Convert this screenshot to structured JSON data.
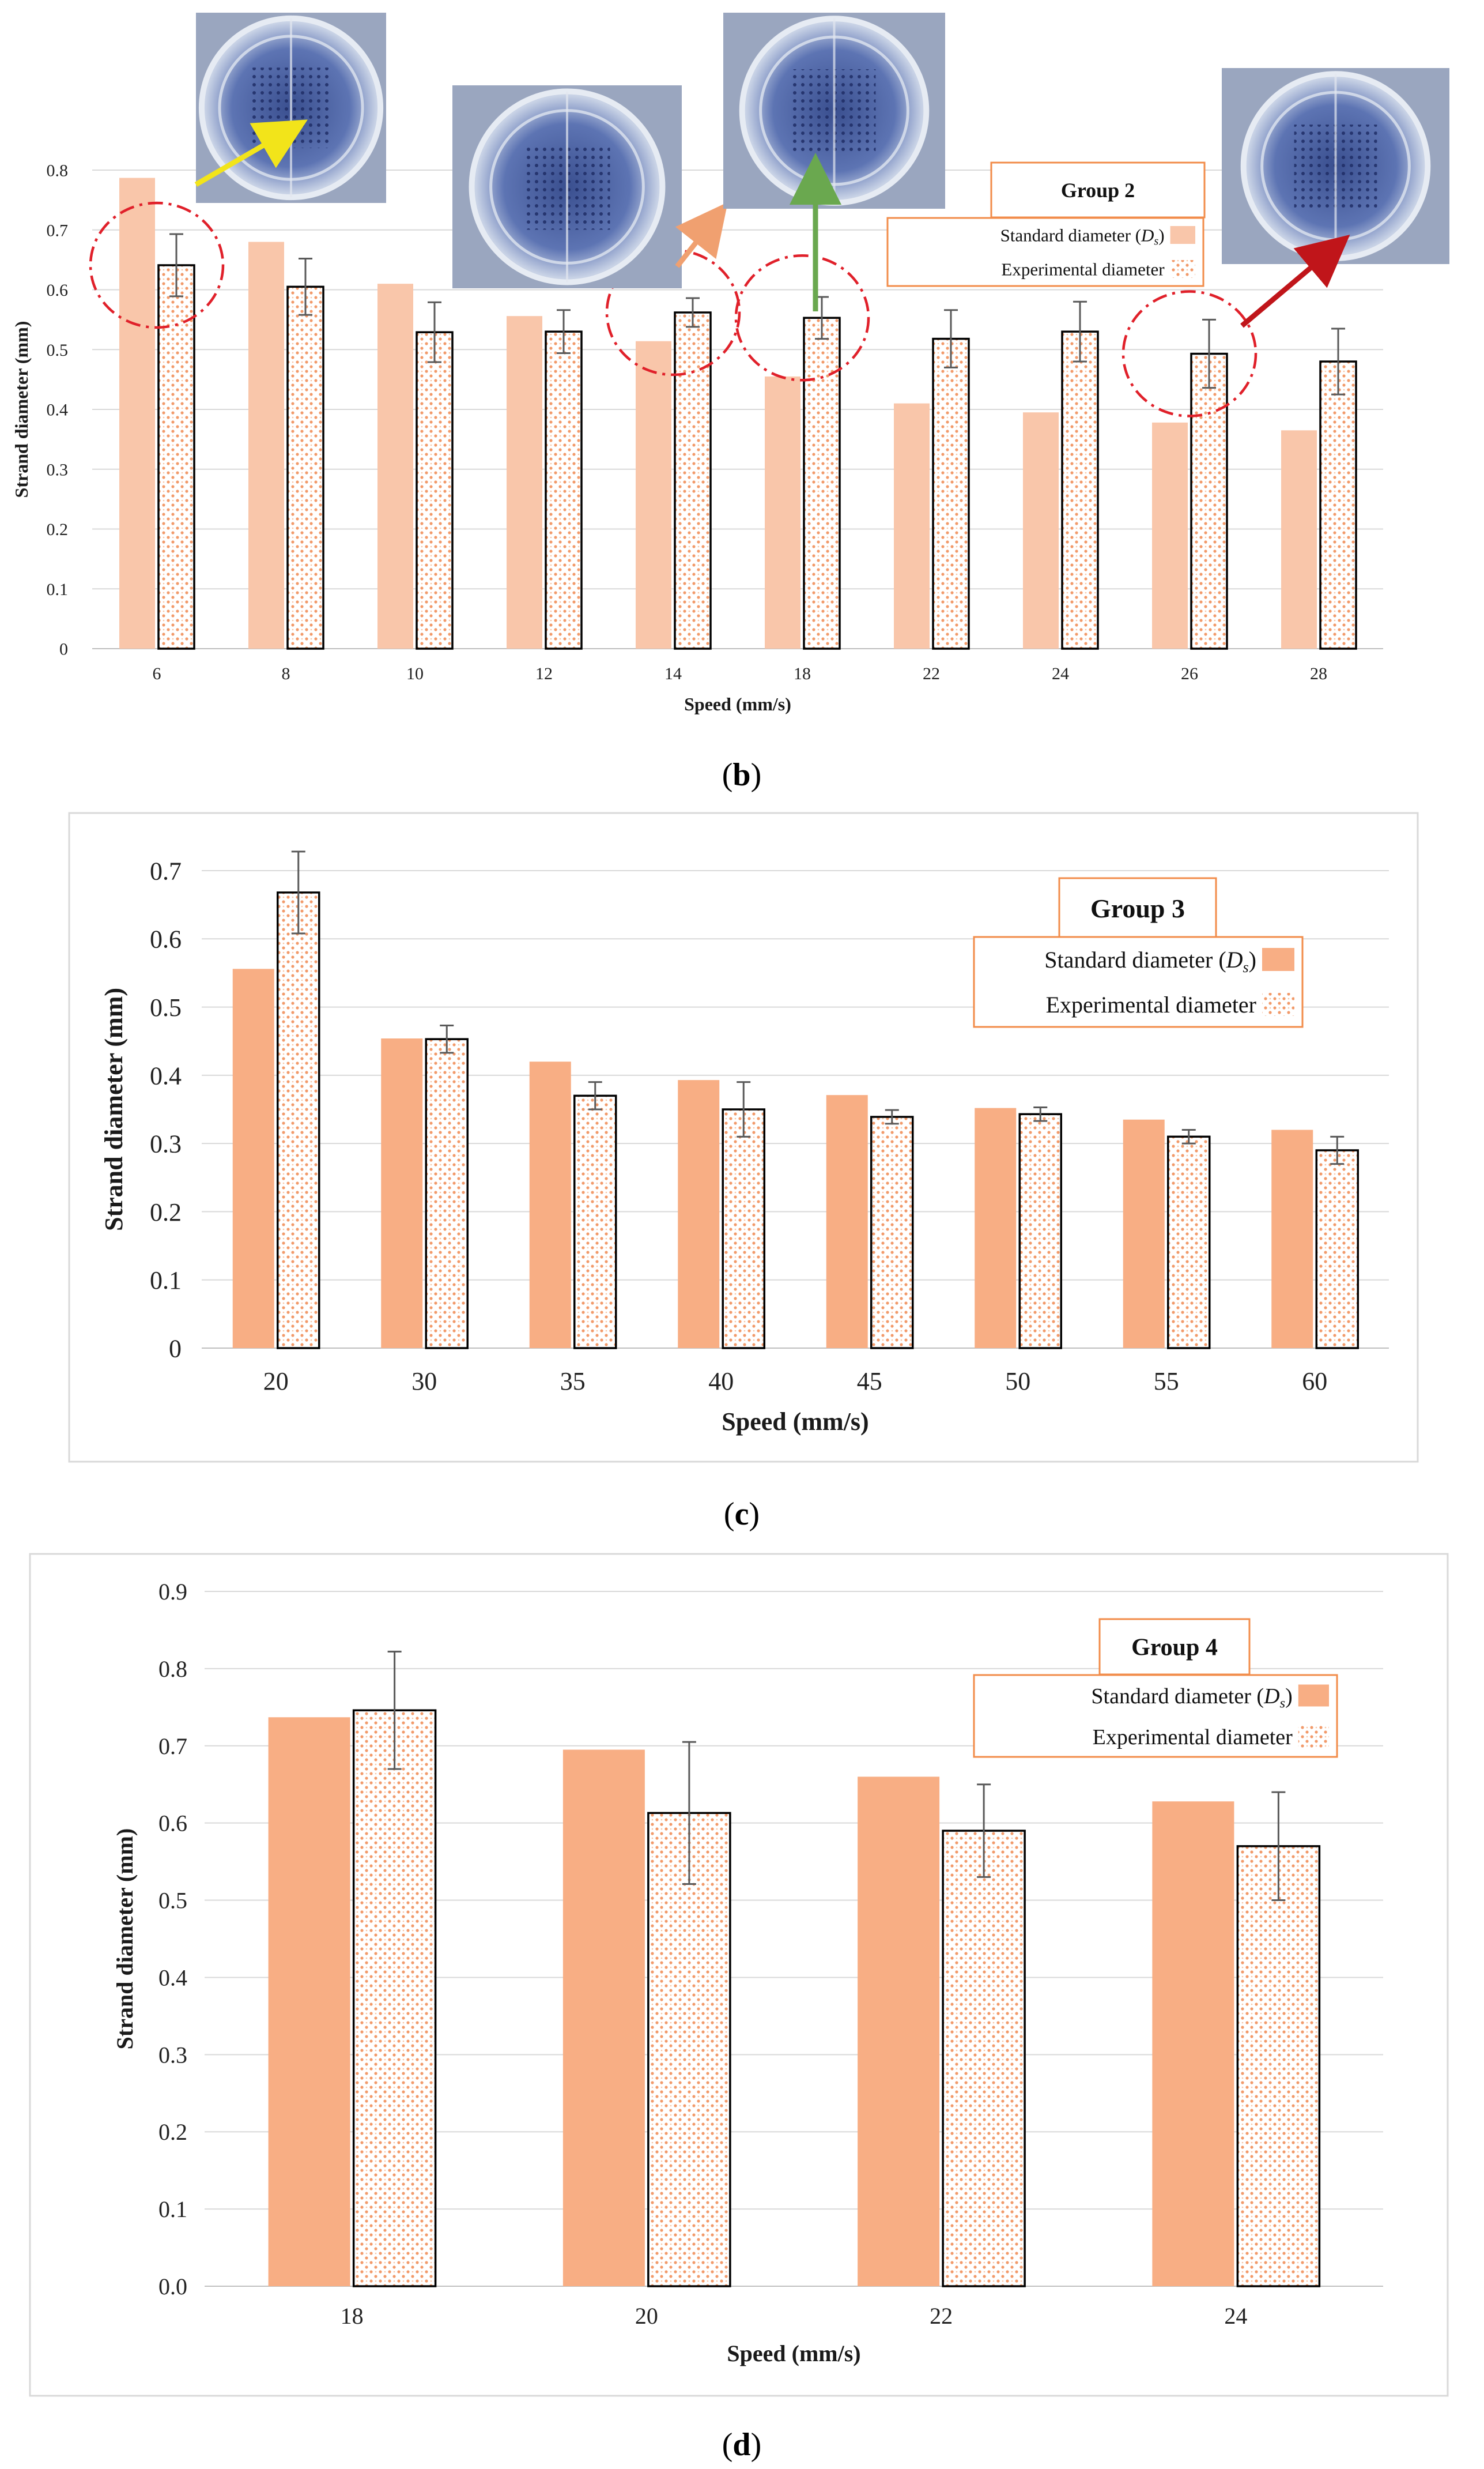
{
  "panels": [
    {
      "label": "(b)",
      "label_letter": "b"
    },
    {
      "label": "(c)",
      "label_letter": "c"
    },
    {
      "label": "(d)",
      "label_letter": "d"
    }
  ],
  "colors": {
    "standard": "#f9c6aa",
    "standard_dark": "#f8ae84",
    "experimental_dots": "#f29a6a",
    "grid": "#d9d9d9",
    "legend_border": "#f28c4a",
    "circle": "#e0202a",
    "arrow_yellow": "#f2e41a",
    "arrow_orange": "#f0a070",
    "arrow_green": "#6aa84f",
    "arrow_red": "#c0151a"
  },
  "photo_annotations": [
    {
      "name": "sample-photo-speed-6",
      "arrow": "yellow-arrow"
    },
    {
      "name": "sample-photo-speed-14",
      "arrow": "orange-arrow"
    },
    {
      "name": "sample-photo-speed-18",
      "arrow": "green-arrow"
    },
    {
      "name": "sample-photo-speed-26",
      "arrow": "red-arrow"
    }
  ],
  "chart_data": [
    {
      "type": "bar",
      "title": "Group 2",
      "xlabel": "Speed (mm/s)",
      "ylabel": "Strand diameter (mm)",
      "categories": [
        "6",
        "8",
        "10",
        "12",
        "14",
        "18",
        "22",
        "24",
        "26",
        "28"
      ],
      "ylim": [
        0,
        0.8
      ],
      "ystep": 0.1,
      "ytick_labels": [
        "0",
        "0.1",
        "0.2",
        "0.3",
        "0.4",
        "0.5",
        "0.6",
        "0.7",
        "0.8"
      ],
      "legend": {
        "title": "Group 2",
        "standard_label": "Standard diameter (",
        "standard_sym": "D",
        "standard_sub": "s",
        "standard_close": ")",
        "experimental_label": "Experimental diameter"
      },
      "series": [
        {
          "name": "Standard diameter (Ds)",
          "values": [
            0.787,
            0.68,
            0.61,
            0.556,
            0.514,
            0.455,
            0.41,
            0.395,
            0.378,
            0.365
          ]
        },
        {
          "name": "Experimental diameter",
          "values": [
            0.641,
            0.605,
            0.529,
            0.53,
            0.562,
            0.553,
            0.518,
            0.53,
            0.493,
            0.48
          ],
          "errors": [
            0.052,
            0.047,
            0.05,
            0.036,
            0.024,
            0.035,
            0.048,
            0.05,
            0.057,
            0.055
          ]
        }
      ],
      "highlighted_categories": [
        "6",
        "14",
        "18",
        "26"
      ]
    },
    {
      "type": "bar",
      "title": "Group 3",
      "xlabel": "Speed (mm/s)",
      "ylabel": "Strand diameter (mm)",
      "categories": [
        "20",
        "30",
        "35",
        "40",
        "45",
        "50",
        "55",
        "60"
      ],
      "ylim": [
        0,
        0.7
      ],
      "ystep": 0.1,
      "ytick_labels": [
        "0",
        "0.1",
        "0.2",
        "0.3",
        "0.4",
        "0.5",
        "0.6",
        "0.7"
      ],
      "legend": {
        "title": "Group 3",
        "standard_label": "Standard diameter (",
        "standard_sym": "D",
        "standard_sub": "s",
        "standard_close": ")",
        "experimental_label": "Experimental diameter"
      },
      "series": [
        {
          "name": "Standard diameter (Ds)",
          "values": [
            0.556,
            0.454,
            0.42,
            0.393,
            0.371,
            0.352,
            0.335,
            0.32
          ]
        },
        {
          "name": "Experimental diameter",
          "values": [
            0.668,
            0.453,
            0.37,
            0.35,
            0.339,
            0.343,
            0.31,
            0.29
          ],
          "errors": [
            0.06,
            0.02,
            0.02,
            0.04,
            0.01,
            0.01,
            0.01,
            0.02
          ]
        }
      ]
    },
    {
      "type": "bar",
      "title": "Group 4",
      "xlabel": "Speed (mm/s)",
      "ylabel": "Strand diameter (mm)",
      "categories": [
        "18",
        "20",
        "22",
        "24"
      ],
      "ylim": [
        0,
        0.9
      ],
      "ystep": 0.1,
      "ytick_labels": [
        "0.0",
        "0.1",
        "0.2",
        "0.3",
        "0.4",
        "0.5",
        "0.6",
        "0.7",
        "0.8",
        "0.9"
      ],
      "legend": {
        "title": "Group 4",
        "standard_label": "Standard diameter (",
        "standard_sym": "D",
        "standard_sub": "s",
        "standard_close": ")",
        "experimental_label": "Experimental diameter"
      },
      "series": [
        {
          "name": "Standard diameter (Ds)",
          "values": [
            0.737,
            0.695,
            0.66,
            0.628
          ]
        },
        {
          "name": "Experimental diameter",
          "values": [
            0.746,
            0.613,
            0.59,
            0.57
          ],
          "errors": [
            0.076,
            0.092,
            0.06,
            0.07
          ]
        }
      ]
    }
  ]
}
